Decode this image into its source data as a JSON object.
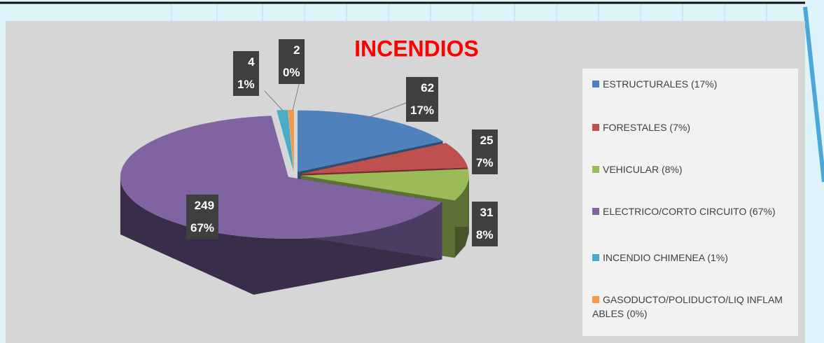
{
  "chart_data": {
    "type": "pie",
    "title": "INCENDIOS",
    "categories": [
      "ESTRUCTURALES (17%)",
      "FORESTALES (7%)",
      "VEHICULAR (8%)",
      "ELECTRICO/CORTO CIRCUITO (67%)",
      "INCENDIO CHIMENEA (1%)",
      "GASODUCTO/POLIDUCTO/LIQ INFLAM ABLES (0%)"
    ],
    "values": [
      62,
      25,
      31,
      249,
      4,
      2
    ],
    "value_labels": [
      "62\n17%",
      "25\n7%",
      "31\n8%",
      "249\n67%",
      "4\n1%",
      "2\n0%"
    ],
    "colors": [
      "#4f81bd",
      "#c0504d",
      "#9bbb59",
      "#8064a2",
      "#4bacc6",
      "#f79646"
    ]
  }
}
